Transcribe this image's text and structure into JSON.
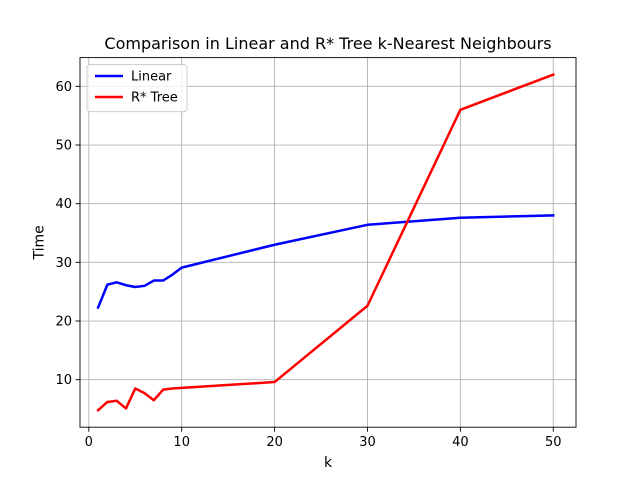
{
  "chart_data": {
    "type": "line",
    "title": "Comparison in Linear and R* Tree k-Nearest Neighbours",
    "xlabel": "k",
    "ylabel": "Time",
    "xlim": [
      -0.95,
      52.45
    ],
    "ylim": [
      1.9,
      64.9
    ],
    "xticks": [
      0,
      10,
      20,
      30,
      40,
      50
    ],
    "yticks": [
      10,
      20,
      30,
      40,
      50,
      60
    ],
    "grid": true,
    "legend_position": "top-left",
    "series": [
      {
        "name": "Linear",
        "color": "#0000ff",
        "x": [
          1,
          2,
          3,
          4,
          5,
          6,
          7,
          8,
          9,
          10,
          20,
          30,
          40,
          50
        ],
        "y": [
          22.3,
          26.2,
          26.6,
          26.1,
          25.8,
          26.0,
          26.9,
          26.9,
          27.9,
          29.1,
          33.0,
          36.4,
          37.6,
          38.0
        ]
      },
      {
        "name": "R* Tree",
        "color": "#ff0000",
        "x": [
          1,
          2,
          3,
          4,
          5,
          6,
          7,
          8,
          9,
          10,
          20,
          30,
          40,
          50
        ],
        "y": [
          4.8,
          6.2,
          6.4,
          5.1,
          8.5,
          7.7,
          6.5,
          8.3,
          8.5,
          8.6,
          9.6,
          22.6,
          56.0,
          62.0
        ]
      }
    ]
  }
}
